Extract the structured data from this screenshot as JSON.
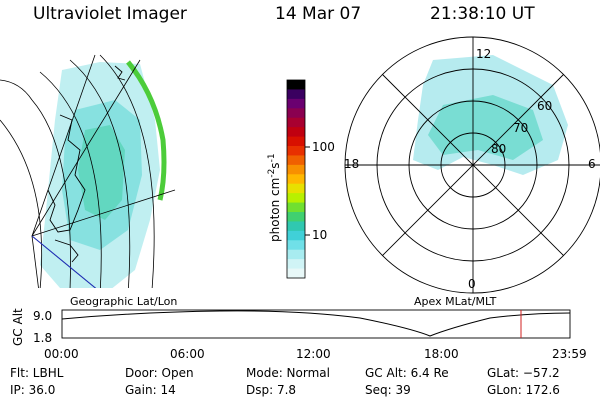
{
  "header": {
    "instrument": "Ultraviolet Imager",
    "date": "14 Mar 07",
    "time": "21:38:10 UT"
  },
  "colorbar": {
    "unit_label": "photon cm",
    "unit_sup1": "-2",
    "unit_mid": "s",
    "unit_sup2": "-1",
    "ticks": [
      "100",
      "10"
    ],
    "colors": [
      "#000000",
      "#3a0060",
      "#6a0070",
      "#8a0050",
      "#a80030",
      "#c00010",
      "#d81000",
      "#e83000",
      "#f06000",
      "#f89000",
      "#ffb800",
      "#e8e000",
      "#b8f000",
      "#70e030",
      "#40d070",
      "#30c8b0",
      "#40d0d8",
      "#70e0e8",
      "#a8ecf0",
      "#d0f4f6",
      "#e8f8f8"
    ]
  },
  "left_panel": {
    "label": "Geographic Lat/Lon"
  },
  "right_panel": {
    "label": "Apex  MLat/MLT",
    "mlt_labels": {
      "top": "12",
      "bottom": "0",
      "left": "18",
      "right": "6"
    },
    "lat_labels": [
      "60",
      "70",
      "80"
    ]
  },
  "altplot": {
    "ylabel": "GC Alt",
    "yticks": [
      "9.0",
      "1.8"
    ],
    "xticks": [
      "00:00",
      "06:00",
      "12:00",
      "18:00",
      "23:59"
    ]
  },
  "info": {
    "flt": "Flt: LBHL",
    "ip": "IP: 36.0",
    "door": "Door: Open",
    "gain": "Gain: 14",
    "mode": "Mode: Normal",
    "dsp": "Dsp:    7.8",
    "gcalt": "GC Alt: 6.4 Re",
    "seq": "Seq: 39",
    "glat": "GLat: −57.2",
    "glon": "GLon: 172.6"
  }
}
